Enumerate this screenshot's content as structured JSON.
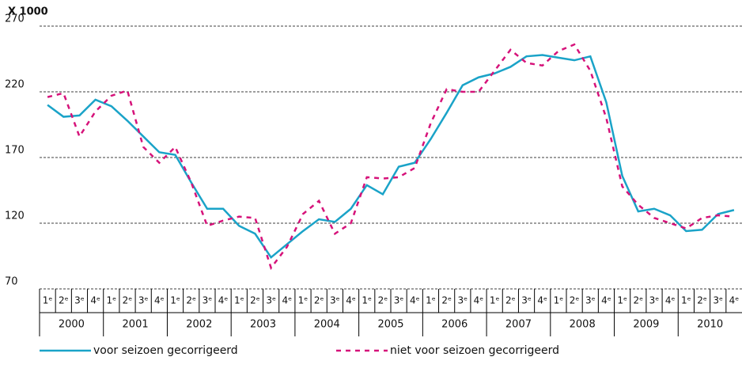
{
  "chart_data": {
    "type": "line",
    "y_label": "X 1000",
    "categories": [
      "1ᵉ",
      "2ᵉ",
      "3ᵉ",
      "4ᵉ",
      "1ᵉ",
      "2ᵉ",
      "3ᵉ",
      "4ᵉ",
      "1ᵉ",
      "2ᵉ",
      "3ᵉ",
      "4ᵉ",
      "1ᵉ",
      "2ᵉ",
      "3ᵉ",
      "4ᵉ",
      "1ᵉ",
      "2ᵉ",
      "3ᵉ",
      "4ᵉ",
      "1ᵉ",
      "2ᵉ",
      "3ᵉ",
      "4ᵉ",
      "1ᵉ",
      "2ᵉ",
      "3ᵉ",
      "4ᵉ",
      "1ᵉ",
      "2ᵉ",
      "3ᵉ",
      "4ᵉ",
      "1ᵉ",
      "2ᵉ",
      "3ᵉ",
      "4ᵉ",
      "1ᵉ",
      "2ᵉ",
      "3ᵉ",
      "4ᵉ",
      "1ᵉ",
      "2ᵉ",
      "3ᵉ",
      "4ᵉ"
    ],
    "years": [
      "2000",
      "2001",
      "2002",
      "2003",
      "2004",
      "2005",
      "2006",
      "2007",
      "2008",
      "2009",
      "2010"
    ],
    "ylim": [
      70,
      270
    ],
    "yticks": [
      70,
      120,
      170,
      220,
      270
    ],
    "grid": true,
    "series": [
      {
        "name": "voor seizoen gecorrigeerd",
        "color": "#1aa3c8",
        "dash": false,
        "values": [
          210,
          201,
          202,
          214,
          209,
          198,
          186,
          174,
          172,
          151,
          131,
          131,
          118,
          112,
          94,
          104,
          114,
          123,
          121,
          131,
          149,
          142,
          163,
          166,
          184,
          204,
          225,
          231,
          234,
          239,
          247,
          248,
          246,
          244,
          247,
          212,
          156,
          129,
          131,
          126,
          114,
          115,
          127,
          130
        ]
      },
      {
        "name": "niet voor seizoen gecorrigeerd",
        "color": "#d6137a",
        "dash": true,
        "values": [
          216,
          219,
          186,
          205,
          217,
          221,
          178,
          166,
          178,
          151,
          118,
          122,
          125,
          124,
          86,
          102,
          127,
          137,
          112,
          120,
          155,
          154,
          155,
          162,
          196,
          222,
          220,
          220,
          236,
          252,
          242,
          240,
          251,
          256,
          236,
          200,
          148,
          134,
          124,
          120,
          116,
          124,
          126,
          125
        ]
      }
    ]
  }
}
